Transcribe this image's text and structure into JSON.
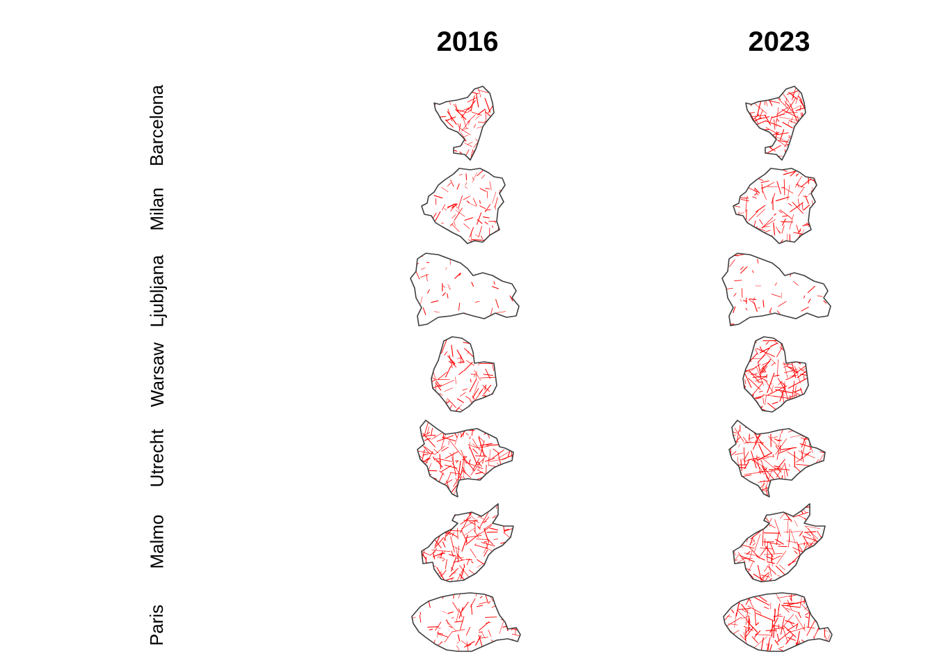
{
  "columns": [
    "2016",
    "2023"
  ],
  "rows": [
    "Barcelona",
    "Milan",
    "Ljubljana",
    "Warsaw",
    "Utrecht",
    "Malmo",
    "Paris"
  ],
  "colors": {
    "outline": "#3d3d3d",
    "network": "#ff0000",
    "background": "#ffffff"
  },
  "maps": [
    {
      "city": "Barcelona",
      "year": "2016",
      "density": 0.55
    },
    {
      "city": "Barcelona",
      "year": "2023",
      "density": 0.85
    },
    {
      "city": "Milan",
      "year": "2016",
      "density": 0.35
    },
    {
      "city": "Milan",
      "year": "2023",
      "density": 0.55
    },
    {
      "city": "Ljubljana",
      "year": "2016",
      "density": 0.12
    },
    {
      "city": "Ljubljana",
      "year": "2023",
      "density": 0.15
    },
    {
      "city": "Warsaw",
      "year": "2016",
      "density": 0.55
    },
    {
      "city": "Warsaw",
      "year": "2023",
      "density": 0.9
    },
    {
      "city": "Utrecht",
      "year": "2016",
      "density": 0.8
    },
    {
      "city": "Utrecht",
      "year": "2023",
      "density": 0.85
    },
    {
      "city": "Malmo",
      "year": "2016",
      "density": 0.75
    },
    {
      "city": "Malmo",
      "year": "2023",
      "density": 0.75
    },
    {
      "city": "Paris",
      "year": "2016",
      "density": 0.4
    },
    {
      "city": "Paris",
      "year": "2023",
      "density": 0.75
    }
  ]
}
